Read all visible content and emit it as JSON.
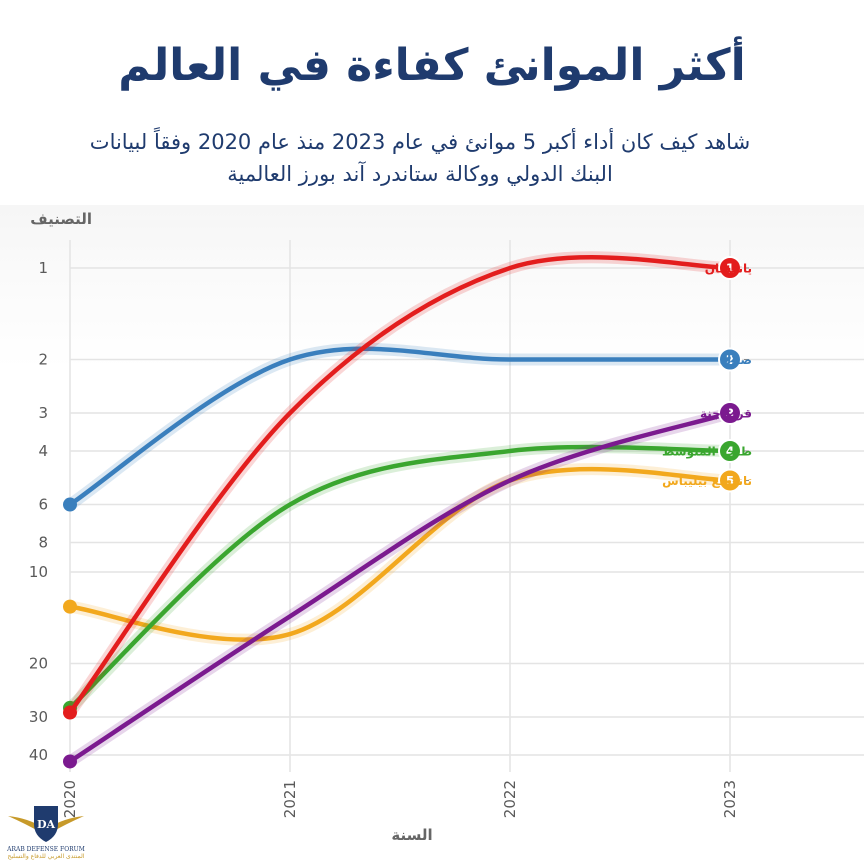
{
  "header": {
    "title": "أكثر الموانئ كفاءة في العالم",
    "subtitle_line1": "شاهد كيف كان أداء أكبر 5 موانئ في عام 2023 منذ عام 2020 وفقاً لبيانات",
    "subtitle_line2": "البنك الدولي ووكالة ستاندرد آند بورز العالمية"
  },
  "chart_data": {
    "type": "line",
    "ylabel": "التصنيف",
    "xlabel": "السنة",
    "x": [
      2020,
      2021,
      2022,
      2023
    ],
    "x_ticks": [
      "2020",
      "2021",
      "2022",
      "2023"
    ],
    "y_scale": "log",
    "y_reversed": true,
    "ylim": [
      1,
      40
    ],
    "y_ticks": [
      "1",
      "2",
      "3",
      "4",
      "6",
      "8",
      "10",
      "20",
      "30",
      "40"
    ],
    "grid": true,
    "series": [
      {
        "name": "يانغشان",
        "rank_label": "1",
        "color": "#e31d1d",
        "values": [
          29,
          3,
          1,
          1
        ]
      },
      {
        "name": "صلالة",
        "rank_label": "2",
        "color": "#3a7fbd",
        "values": [
          6,
          2,
          2,
          2
        ]
      },
      {
        "name": "قرطاجنة",
        "rank_label": "3",
        "color": "#7b1a8f",
        "values": [
          42,
          14,
          5,
          3
        ]
      },
      {
        "name": "طنجة المتوسط",
        "rank_label": "4",
        "color": "#3aa62f",
        "values": [
          28,
          6,
          4,
          4
        ]
      },
      {
        "name": "تانغونغ بيليباس",
        "rank_label": "5",
        "color": "#f2a81d",
        "values": [
          13,
          16,
          5,
          5
        ]
      }
    ]
  },
  "logo": {
    "initials": "DA",
    "name": "ARAB DEFENSE FORUM",
    "tagline": "المنتدى العربي للدفاع والتسليح"
  }
}
